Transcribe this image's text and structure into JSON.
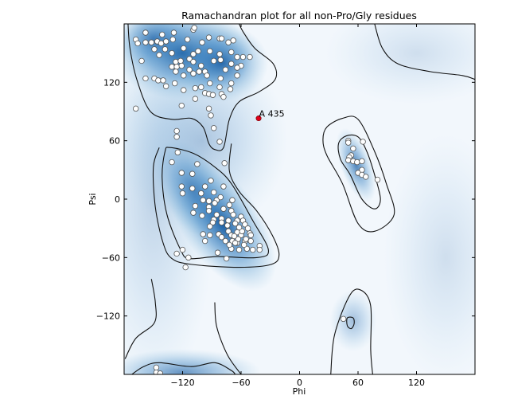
{
  "chart_data": {
    "type": "scatter",
    "title": "Ramachandran plot for all non-Pro/Gly residues",
    "xlabel": "Phi",
    "ylabel": "Psi",
    "xlim": [
      -180,
      180
    ],
    "ylim": [
      -180,
      180
    ],
    "xticks": [
      -120,
      -60,
      0,
      60,
      120
    ],
    "yticks": [
      -120,
      -60,
      0,
      60,
      120
    ],
    "xtick_labels": [
      "−120",
      "−60",
      "0",
      "60",
      "120"
    ],
    "ytick_labels": [
      "−120",
      "−60",
      "0",
      "60",
      "120"
    ],
    "grid": false,
    "colors": {
      "density_dark": "#08519c",
      "density_base": "#f2f7fc",
      "point_fill": "#ffffff",
      "point_edge": "#555555",
      "outlier": "#e0001a",
      "contour": "#111111"
    },
    "density_peaks": [
      {
        "phi": -150,
        "psi": 0,
        "sphi": 40,
        "spsi": 180,
        "angle": 0,
        "weight": 0.22
      },
      {
        "phi": -100,
        "psi": 60,
        "sphi": 55,
        "spsi": 60,
        "angle": 0,
        "weight": 0.3
      },
      {
        "phi": -120,
        "psi": 150,
        "sphi": 45,
        "spsi": 30,
        "angle": 0,
        "weight": 0.9
      },
      {
        "phi": -80,
        "psi": 140,
        "sphi": 30,
        "spsi": 25,
        "angle": 0,
        "weight": 0.8
      },
      {
        "phi": -150,
        "psi": 165,
        "sphi": 25,
        "spsi": 20,
        "angle": 0,
        "weight": 0.6
      },
      {
        "phi": -80,
        "psi": -25,
        "sphi": 25,
        "spsi": 50,
        "angle": -35,
        "weight": 0.95
      },
      {
        "phi": -110,
        "psi": 10,
        "sphi": 20,
        "spsi": 35,
        "angle": -30,
        "weight": 0.5
      },
      {
        "phi": 58,
        "psi": 35,
        "sphi": 10,
        "spsi": 25,
        "angle": -20,
        "weight": 0.7
      },
      {
        "phi": -120,
        "psi": -178,
        "sphi": 50,
        "spsi": 15,
        "angle": 0,
        "weight": 0.6
      },
      {
        "phi": 55,
        "psi": -125,
        "sphi": 15,
        "spsi": 20,
        "angle": 0,
        "weight": 0.35
      },
      {
        "phi": 120,
        "psi": 150,
        "sphi": 60,
        "spsi": 40,
        "angle": 0,
        "weight": 0.15
      },
      {
        "phi": 150,
        "psi": -60,
        "sphi": 40,
        "spsi": 80,
        "angle": 0,
        "weight": 0.15
      }
    ],
    "contours": [
      {
        "closed": false,
        "points": [
          [
            -176,
            180
          ],
          [
            -174,
            155
          ],
          [
            -167,
            123
          ],
          [
            -153,
            90
          ],
          [
            -131,
            82
          ],
          [
            -111,
            83
          ],
          [
            -99,
            74
          ],
          [
            -93,
            57
          ],
          [
            -87,
            51
          ],
          [
            -78,
            53
          ],
          [
            -72,
            82
          ],
          [
            -62,
            100
          ],
          [
            -42,
            110
          ],
          [
            -25,
            123
          ],
          [
            -27,
            139
          ],
          [
            -46,
            155
          ],
          [
            -58,
            172
          ],
          [
            -62,
            180
          ]
        ]
      },
      {
        "closed": true,
        "points": [
          [
            -138,
            49
          ],
          [
            -141,
            22
          ],
          [
            -136,
            -16
          ],
          [
            -122,
            -52
          ],
          [
            -113,
            -61
          ],
          [
            -84,
            -59
          ],
          [
            -43,
            -60
          ],
          [
            -32,
            -52
          ],
          [
            -48,
            -22
          ],
          [
            -70,
            16
          ],
          [
            -87,
            33
          ],
          [
            -109,
            47
          ],
          [
            -133,
            53
          ]
        ]
      },
      {
        "closed": false,
        "points": [
          [
            -70,
            57
          ],
          [
            -72,
            29
          ],
          [
            -62,
            8
          ],
          [
            -44,
            -12
          ],
          [
            -28,
            -37
          ],
          [
            -21,
            -57
          ],
          [
            -29,
            -67
          ],
          [
            -62,
            -70
          ],
          [
            -111,
            -67
          ],
          [
            -131,
            -61
          ],
          [
            -140,
            -45
          ],
          [
            -148,
            -8
          ],
          [
            -150,
            33
          ],
          [
            -144,
            53
          ]
        ]
      },
      {
        "closed": true,
        "points": [
          [
            40,
            57
          ],
          [
            48,
            65
          ],
          [
            60,
            64
          ],
          [
            69,
            49
          ],
          [
            77,
            25
          ],
          [
            83,
            0
          ],
          [
            77,
            -10
          ],
          [
            64,
            0
          ],
          [
            52,
            25
          ],
          [
            42,
            41
          ]
        ]
      },
      {
        "closed": true,
        "points": [
          [
            24,
            61
          ],
          [
            28,
            74
          ],
          [
            44,
            83
          ],
          [
            60,
            82
          ],
          [
            77,
            49
          ],
          [
            89,
            16
          ],
          [
            97,
            -16
          ],
          [
            77,
            -33
          ],
          [
            60,
            -25
          ],
          [
            44,
            16
          ],
          [
            28,
            45
          ]
        ]
      },
      {
        "closed": false,
        "points": [
          [
            77,
            180
          ],
          [
            85,
            155
          ],
          [
            101,
            139
          ],
          [
            134,
            131
          ],
          [
            167,
            127
          ],
          [
            180,
            123
          ]
        ]
      },
      {
        "closed": false,
        "points": [
          [
            32,
            -180
          ],
          [
            36,
            -139
          ],
          [
            52,
            -98
          ],
          [
            64,
            -94
          ],
          [
            73,
            -110
          ],
          [
            73,
            -155
          ],
          [
            75,
            -180
          ]
        ]
      },
      {
        "closed": true,
        "points": [
          [
            49,
            -122
          ],
          [
            55,
            -122
          ],
          [
            56,
            -128
          ],
          [
            53,
            -133
          ],
          [
            49,
            -130
          ]
        ]
      },
      {
        "closed": false,
        "points": [
          [
            -172,
            -180
          ],
          [
            -160,
            -172
          ],
          [
            -144,
            -168
          ],
          [
            -111,
            -172
          ],
          [
            -87,
            -168
          ],
          [
            -70,
            -176
          ],
          [
            -66,
            -180
          ]
        ]
      },
      {
        "closed": false,
        "points": [
          [
            -179,
            -164
          ],
          [
            -168,
            -143
          ],
          [
            -149,
            -127
          ],
          [
            -148,
            -106
          ],
          [
            -152,
            -82
          ]
        ]
      },
      {
        "closed": false,
        "points": [
          [
            -87,
            -106
          ],
          [
            -85,
            -131
          ],
          [
            -74,
            -160
          ],
          [
            -60,
            -180
          ]
        ]
      }
    ],
    "points": [
      [
        -168,
        164
      ],
      [
        -158,
        171
      ],
      [
        -166,
        160
      ],
      [
        -158,
        161
      ],
      [
        -152,
        161
      ],
      [
        -146,
        162
      ],
      [
        -141,
        169
      ],
      [
        -142,
        160
      ],
      [
        -137,
        162
      ],
      [
        -130,
        164
      ],
      [
        -129,
        171
      ],
      [
        -115,
        164
      ],
      [
        -109,
        174
      ],
      [
        -149,
        154
      ],
      [
        -144,
        148
      ],
      [
        -138,
        154
      ],
      [
        -131,
        150
      ],
      [
        -119,
        155
      ],
      [
        -109,
        149
      ],
      [
        -104,
        152
      ],
      [
        -162,
        142
      ],
      [
        -127,
        141
      ],
      [
        -122,
        142
      ],
      [
        -113,
        144
      ],
      [
        -109,
        141
      ],
      [
        -101,
        137
      ],
      [
        -131,
        136
      ],
      [
        -126,
        136
      ],
      [
        -121,
        137
      ],
      [
        -113,
        133
      ],
      [
        -127,
        131
      ],
      [
        -119,
        127
      ],
      [
        -109,
        129
      ],
      [
        -103,
        131
      ],
      [
        -97,
        131
      ],
      [
        -93,
        166
      ],
      [
        -100,
        161
      ],
      [
        -92,
        152
      ],
      [
        -88,
        142
      ],
      [
        -82,
        149
      ],
      [
        -81,
        143
      ],
      [
        -82,
        165
      ],
      [
        -80,
        165
      ],
      [
        -73,
        161
      ],
      [
        -68,
        163
      ],
      [
        -70,
        151
      ],
      [
        -64,
        146
      ],
      [
        -58,
        146
      ],
      [
        -51,
        146
      ],
      [
        -60,
        137
      ],
      [
        -64,
        135
      ],
      [
        -70,
        139
      ],
      [
        -76,
        133
      ],
      [
        -81,
        124
      ],
      [
        -64,
        127
      ],
      [
        -95,
        127
      ],
      [
        -158,
        124
      ],
      [
        -149,
        124
      ],
      [
        -145,
        122
      ],
      [
        -140,
        122
      ],
      [
        -137,
        116
      ],
      [
        -128,
        119
      ],
      [
        -119,
        112
      ],
      [
        -107,
        114
      ],
      [
        -101,
        115
      ],
      [
        -92,
        119
      ],
      [
        -97,
        109
      ],
      [
        -93,
        108
      ],
      [
        -89,
        107
      ],
      [
        -82,
        115
      ],
      [
        -80,
        108
      ],
      [
        -78,
        105
      ],
      [
        -70,
        119
      ],
      [
        -71,
        113
      ],
      [
        -107,
        103
      ],
      [
        -121,
        96
      ],
      [
        -93,
        93
      ],
      [
        -91,
        86
      ],
      [
        -88,
        73
      ],
      [
        -82,
        59
      ],
      [
        -168,
        93
      ],
      [
        -126,
        70
      ],
      [
        -126,
        64
      ],
      [
        -108,
        176
      ],
      [
        -125,
        48
      ],
      [
        -131,
        38
      ],
      [
        -105,
        36
      ],
      [
        -77,
        37
      ],
      [
        -121,
        27
      ],
      [
        -110,
        26
      ],
      [
        -91,
        19
      ],
      [
        -121,
        13
      ],
      [
        -110,
        11
      ],
      [
        -97,
        13
      ],
      [
        -78,
        13
      ],
      [
        -120,
        6
      ],
      [
        -101,
        6
      ],
      [
        -88,
        7
      ],
      [
        -99,
        -1
      ],
      [
        -93,
        -2
      ],
      [
        -85,
        -1
      ],
      [
        -81,
        2
      ],
      [
        -69,
        -1
      ],
      [
        -107,
        -7
      ],
      [
        -93,
        -8
      ],
      [
        -87,
        -4
      ],
      [
        -72,
        -6
      ],
      [
        -109,
        -14
      ],
      [
        -93,
        -12
      ],
      [
        -78,
        -10
      ],
      [
        -70,
        -12
      ],
      [
        -100,
        -17
      ],
      [
        -85,
        -16
      ],
      [
        -80,
        -20
      ],
      [
        -68,
        -16
      ],
      [
        -60,
        -18
      ],
      [
        -88,
        -21
      ],
      [
        -73,
        -22
      ],
      [
        -64,
        -22
      ],
      [
        -58,
        -22
      ],
      [
        -89,
        -24
      ],
      [
        -80,
        -24
      ],
      [
        -92,
        -28
      ],
      [
        -74,
        -27
      ],
      [
        -66,
        -25
      ],
      [
        -56,
        -26
      ],
      [
        -99,
        -36
      ],
      [
        -92,
        -37
      ],
      [
        -83,
        -36
      ],
      [
        -80,
        -39
      ],
      [
        -73,
        -33
      ],
      [
        -70,
        -37
      ],
      [
        -64,
        -34
      ],
      [
        -60,
        -37
      ],
      [
        -51,
        -35
      ],
      [
        -76,
        -43
      ],
      [
        -69,
        -43
      ],
      [
        -64,
        -45
      ],
      [
        -56,
        -43
      ],
      [
        -50,
        -43
      ],
      [
        -70,
        -51
      ],
      [
        -62,
        -52
      ],
      [
        -54,
        -51
      ],
      [
        -48,
        -52
      ],
      [
        -41,
        -48
      ],
      [
        -41,
        -52
      ],
      [
        -97,
        -43
      ],
      [
        -84,
        -55
      ],
      [
        -75,
        -61
      ],
      [
        -120,
        -52
      ],
      [
        -126,
        -56
      ],
      [
        -114,
        -60
      ],
      [
        -117,
        -70
      ],
      [
        -63,
        -41
      ],
      [
        -59,
        -33
      ],
      [
        -55,
        -41
      ],
      [
        -66,
        -45
      ],
      [
        -50,
        -37
      ],
      [
        -62,
        -29
      ],
      [
        -57,
        -47
      ],
      [
        -67,
        -38
      ],
      [
        -72,
        -47
      ],
      [
        -53,
        -30
      ],
      [
        50,
        60
      ],
      [
        50,
        58
      ],
      [
        65,
        59
      ],
      [
        55,
        52
      ],
      [
        53,
        45
      ],
      [
        51,
        43
      ],
      [
        50,
        40
      ],
      [
        55,
        39
      ],
      [
        59,
        38
      ],
      [
        64,
        39
      ],
      [
        64,
        30
      ],
      [
        60,
        27
      ],
      [
        64,
        25
      ],
      [
        68,
        23
      ],
      [
        80,
        20
      ],
      [
        45,
        -123
      ],
      [
        -147,
        -173
      ],
      [
        -147,
        -178
      ],
      [
        -143,
        -179
      ]
    ],
    "outliers": [
      {
        "phi": -42,
        "psi": 83,
        "label": "A 435"
      }
    ]
  }
}
